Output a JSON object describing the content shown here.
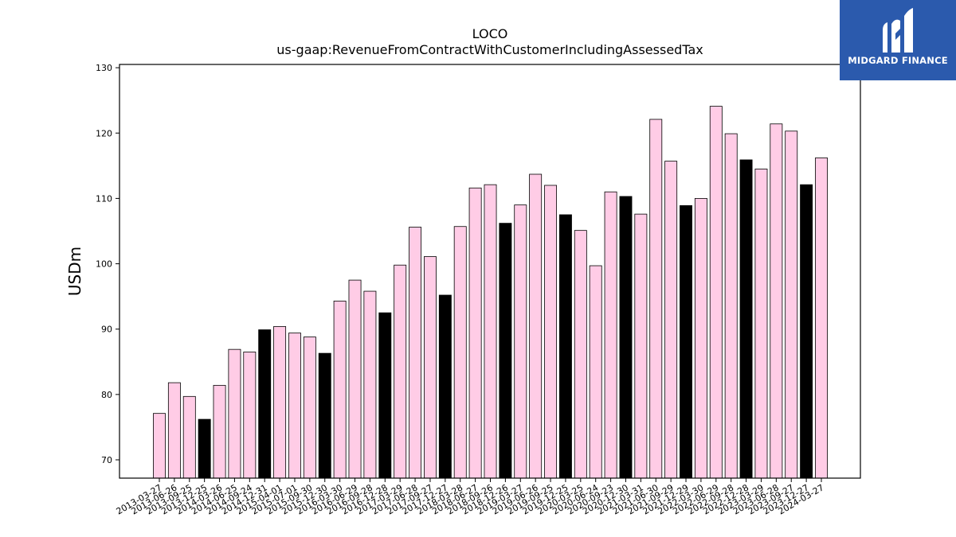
{
  "logo": {
    "text": "MIDGARD FINANCE",
    "icon": "midgard-logo-icon",
    "background": "#2b5aad"
  },
  "chart_data": {
    "type": "bar",
    "title": [
      "LOCO",
      "us-gaap:RevenueFromContractWithCustomerIncludingAssessedTax"
    ],
    "xlabel": "",
    "ylabel": "USDm",
    "ylim": [
      67.2,
      130.5
    ],
    "yticks": [
      70,
      80,
      90,
      100,
      110,
      120,
      130
    ],
    "grid": false,
    "colors": {
      "quarter": "#ffcce6",
      "fiscal_year_end": "#000000",
      "edge": "#000000"
    },
    "categories": [
      "2013-03-27",
      "2013-06-26",
      "2013-09-25",
      "2013-12-25",
      "2014-03-26",
      "2014-06-25",
      "2014-09-24",
      "2014-12-31",
      "2015-04-01",
      "2015-07-01",
      "2015-09-30",
      "2015-12-30",
      "2016-03-30",
      "2016-06-29",
      "2016-09-28",
      "2016-12-28",
      "2017-03-29",
      "2017-06-28",
      "2017-09-27",
      "2017-12-27",
      "2018-03-28",
      "2018-06-27",
      "2018-09-26",
      "2018-12-26",
      "2019-03-27",
      "2019-06-26",
      "2019-09-25",
      "2019-12-25",
      "2020-03-25",
      "2020-06-24",
      "2020-09-23",
      "2020-12-30",
      "2021-03-31",
      "2021-06-30",
      "2021-09-29",
      "2021-12-29",
      "2022-03-30",
      "2022-06-29",
      "2022-09-28",
      "2022-12-28",
      "2023-03-29",
      "2023-06-28",
      "2023-09-27",
      "2023-12-27",
      "2024-03-27"
    ],
    "values": [
      77.1,
      81.8,
      79.7,
      76.2,
      81.4,
      86.9,
      86.5,
      89.9,
      90.4,
      89.4,
      88.8,
      86.3,
      94.3,
      97.5,
      95.8,
      92.5,
      99.8,
      105.6,
      101.1,
      95.2,
      105.7,
      111.6,
      112.1,
      106.2,
      109.0,
      113.7,
      112.0,
      107.5,
      105.1,
      99.7,
      111.0,
      110.3,
      107.6,
      122.1,
      115.7,
      108.9,
      110.0,
      124.1,
      119.9,
      115.9,
      114.5,
      121.4,
      120.3,
      112.1,
      116.2
    ],
    "fiscal_year_end": [
      false,
      false,
      false,
      true,
      false,
      false,
      false,
      true,
      false,
      false,
      false,
      true,
      false,
      false,
      false,
      true,
      false,
      false,
      false,
      true,
      false,
      false,
      false,
      true,
      false,
      false,
      false,
      true,
      false,
      false,
      false,
      true,
      false,
      false,
      false,
      true,
      false,
      false,
      false,
      true,
      false,
      false,
      false,
      true,
      false
    ]
  }
}
